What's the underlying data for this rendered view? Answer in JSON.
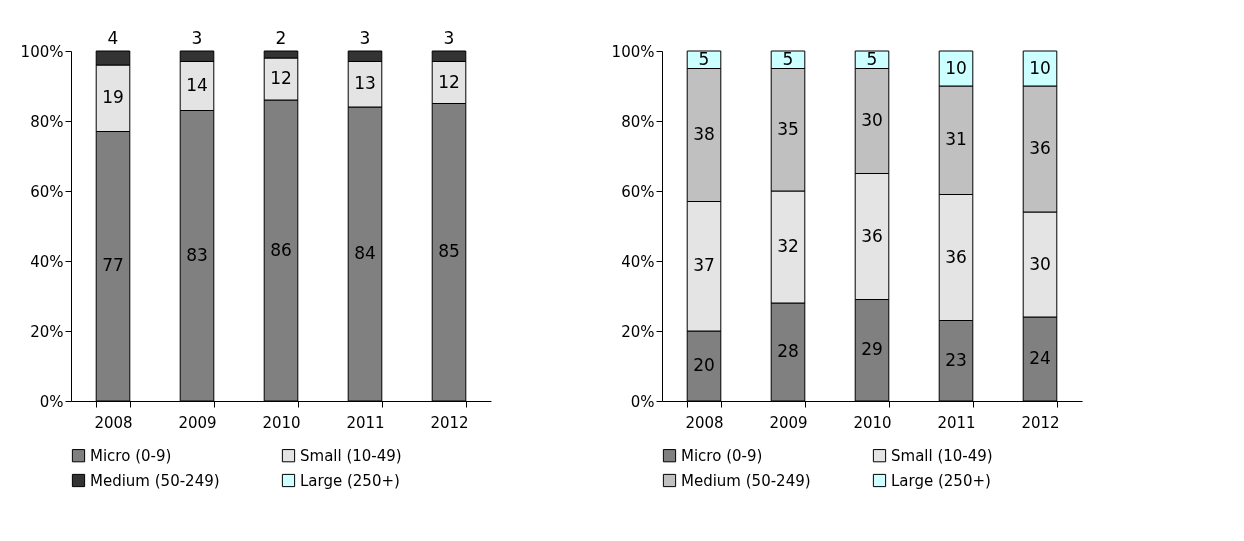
{
  "chart_data": [
    {
      "type": "bar",
      "stacked": true,
      "categories": [
        "2008",
        "2009",
        "2010",
        "2011",
        "2012"
      ],
      "series": [
        {
          "name": "Micro (0-9)",
          "color": "#808080",
          "values": [
            77,
            83,
            86,
            84,
            85
          ]
        },
        {
          "name": "Small (10-49)",
          "color": "#e4e4e4",
          "values": [
            19,
            14,
            12,
            13,
            12
          ]
        },
        {
          "name": "Medium (50-249)",
          "color": "#333333",
          "values": [
            4,
            3,
            2,
            3,
            3
          ]
        },
        {
          "name": "Large (250+)",
          "color": "#ccffff",
          "values": [
            null,
            null,
            null,
            null,
            null
          ]
        }
      ],
      "ylim": [
        0,
        100
      ],
      "yticks": [
        {
          "value": 0,
          "label": "0%"
        },
        {
          "value": 20,
          "label": "20%"
        },
        {
          "value": 40,
          "label": "40%"
        },
        {
          "value": 60,
          "label": "60%"
        },
        {
          "value": 80,
          "label": "80%"
        },
        {
          "value": 100,
          "label": "100%"
        }
      ],
      "data_labels": true,
      "grid": false,
      "legend": "bottom"
    },
    {
      "type": "bar",
      "stacked": true,
      "categories": [
        "2008",
        "2009",
        "2010",
        "2011",
        "2012"
      ],
      "series": [
        {
          "name": "Micro (0-9)",
          "color": "#808080",
          "values": [
            20,
            28,
            29,
            23,
            24
          ]
        },
        {
          "name": "Small (10-49)",
          "color": "#e4e4e4",
          "values": [
            37,
            32,
            36,
            36,
            30
          ]
        },
        {
          "name": "Medium (50-249)",
          "color": "#c0c0c0",
          "values": [
            38,
            35,
            30,
            31,
            36
          ]
        },
        {
          "name": "Large (250+)",
          "color": "#ccffff",
          "values": [
            5,
            5,
            5,
            10,
            10
          ]
        }
      ],
      "ylim": [
        0,
        100
      ],
      "yticks": [
        {
          "value": 0,
          "label": "0%"
        },
        {
          "value": 20,
          "label": "20%"
        },
        {
          "value": 40,
          "label": "40%"
        },
        {
          "value": 60,
          "label": "60%"
        },
        {
          "value": 80,
          "label": "80%"
        },
        {
          "value": 100,
          "label": "100%"
        }
      ],
      "data_labels": true,
      "grid": false,
      "legend": "bottom"
    }
  ]
}
